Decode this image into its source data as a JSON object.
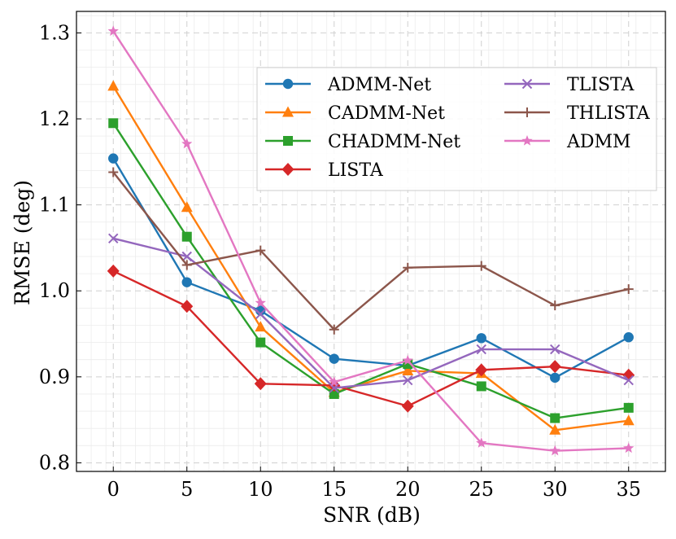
{
  "chart_data": {
    "type": "line",
    "xlabel": "SNR (dB)",
    "ylabel": "RMSE (deg)",
    "x": [
      0,
      5,
      10,
      15,
      20,
      25,
      30,
      35
    ],
    "xlim": [
      -2.5,
      37.5
    ],
    "ylim": [
      0.79,
      1.325
    ],
    "xticks": [
      "0",
      "5",
      "10",
      "15",
      "20",
      "25",
      "30",
      "35"
    ],
    "yticks": [
      "0.8",
      "0.9",
      "1.0",
      "1.1",
      "1.2",
      "1.3"
    ],
    "grid": true,
    "legend_position": "upper-right",
    "legend_columns": 2,
    "series": [
      {
        "name": "ADMM-Net",
        "color": "#1f77b4",
        "marker": "circle",
        "values": [
          1.154,
          1.01,
          0.977,
          0.921,
          0.913,
          0.945,
          0.899,
          0.946
        ]
      },
      {
        "name": "CADMM-Net",
        "color": "#ff7f0e",
        "marker": "triangle-up",
        "values": [
          1.238,
          1.097,
          0.958,
          0.882,
          0.907,
          0.904,
          0.838,
          0.849
        ]
      },
      {
        "name": "CHADMM-Net",
        "color": "#2ca02c",
        "marker": "square",
        "values": [
          1.195,
          1.063,
          0.94,
          0.88,
          0.915,
          0.889,
          0.852,
          0.864
        ]
      },
      {
        "name": "LISTA",
        "color": "#d62728",
        "marker": "diamond",
        "values": [
          1.023,
          0.982,
          0.892,
          0.89,
          0.866,
          0.908,
          0.912,
          0.902
        ]
      },
      {
        "name": "TLISTA",
        "color": "#9467bd",
        "marker": "x",
        "values": [
          1.061,
          1.04,
          0.973,
          0.887,
          0.896,
          0.932,
          0.932,
          0.896
        ]
      },
      {
        "name": "THLISTA",
        "color": "#8c564b",
        "marker": "plus",
        "values": [
          1.138,
          1.03,
          1.047,
          0.955,
          1.027,
          1.029,
          0.983,
          1.002
        ]
      },
      {
        "name": "ADMM",
        "color": "#e377c2",
        "marker": "star",
        "values": [
          1.302,
          1.171,
          0.986,
          0.894,
          0.919,
          0.823,
          0.814,
          0.817
        ]
      }
    ]
  }
}
